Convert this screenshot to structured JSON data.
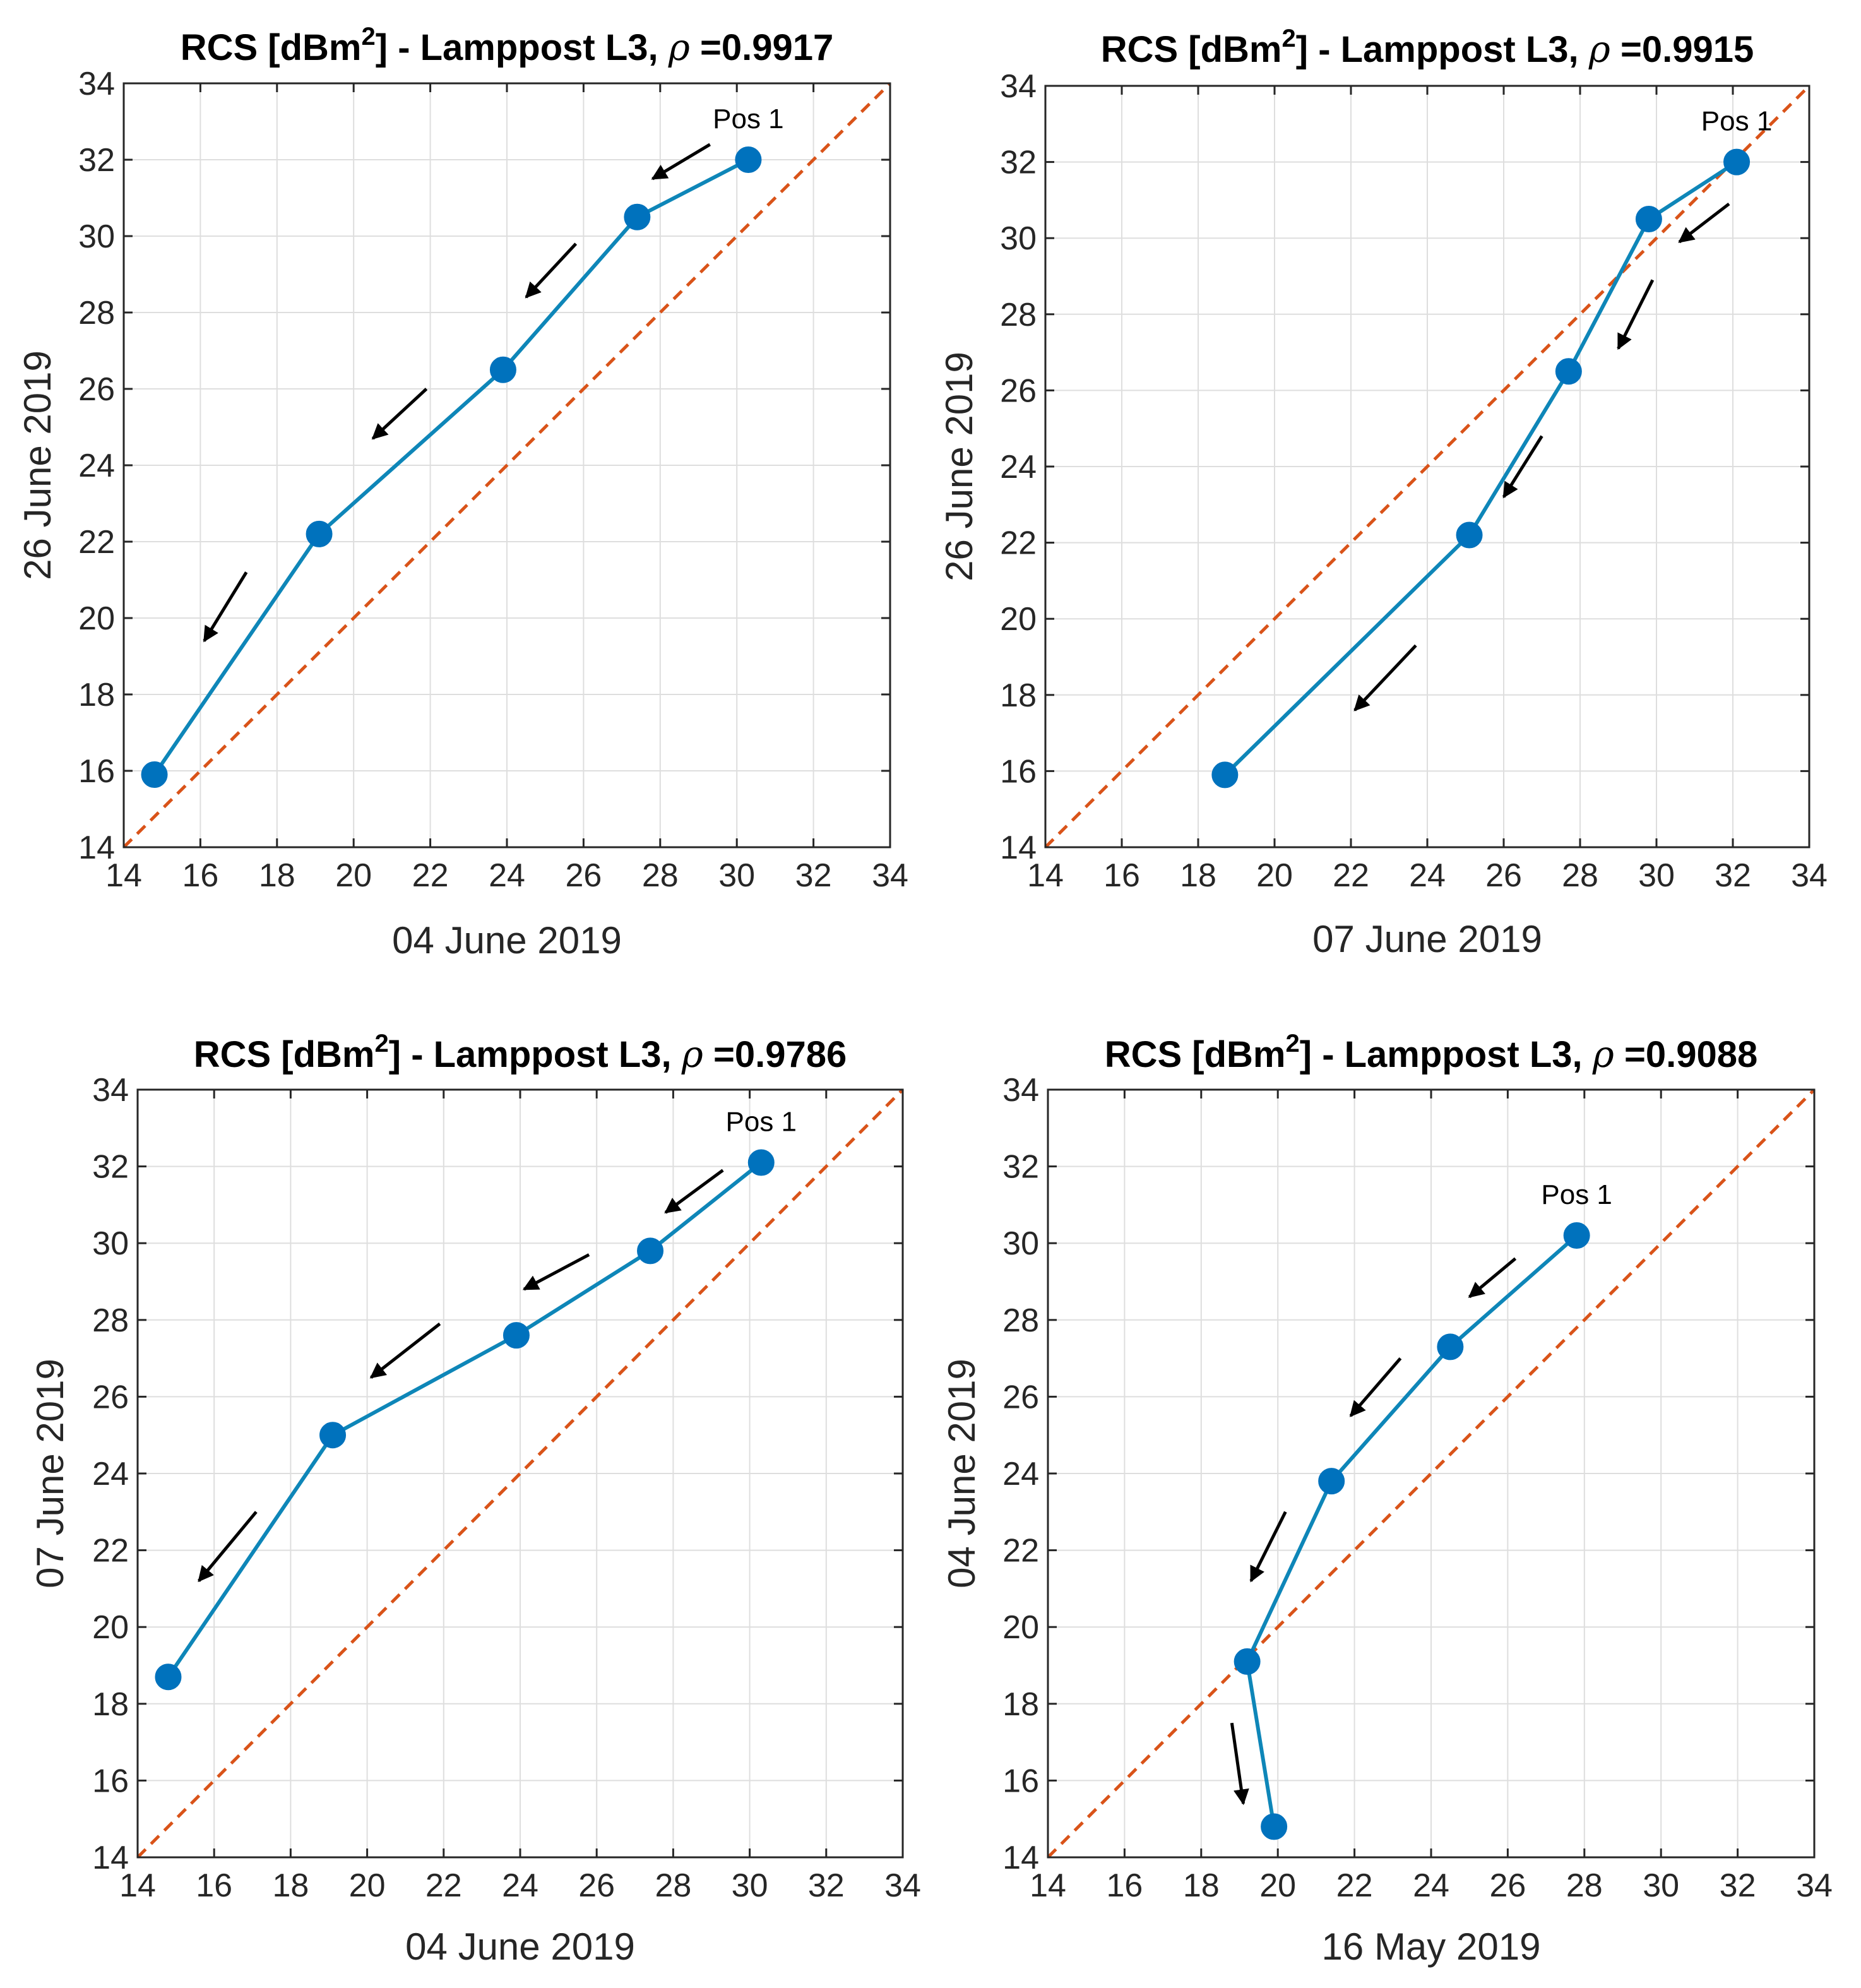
{
  "colors": {
    "series": "#0072BD",
    "series_line": "#0E86B8",
    "diagonal": "#D95319",
    "grid": "#dedede",
    "axes": "#262626",
    "arrow": "#000000"
  },
  "chart_data": [
    {
      "type": "line",
      "title_prefix": "RCS [dBm",
      "title_sup": "2",
      "title_mid": "] - Lamppost L3,  ",
      "title_rho": "ρ",
      "title_value": " =0.9917",
      "xlabel": "04 June 2019",
      "ylabel": "26 June 2019",
      "xlim": [
        14,
        34
      ],
      "ylim": [
        14,
        34
      ],
      "xticks": [
        14,
        16,
        18,
        20,
        22,
        24,
        26,
        28,
        30,
        32,
        34
      ],
      "yticks": [
        14,
        16,
        18,
        20,
        22,
        24,
        26,
        28,
        30,
        32,
        34
      ],
      "grid": true,
      "reference_line": "y = x",
      "series": [
        {
          "name": "RCS",
          "x": [
            14.8,
            19.1,
            23.9,
            27.4,
            30.3
          ],
          "y": [
            15.9,
            22.2,
            26.5,
            30.5,
            32.0
          ]
        }
      ],
      "annotation": {
        "text": "Pos 1",
        "x": 30.3,
        "y": 32.0
      },
      "arrows": [
        {
          "from": [
            29.3,
            32.4
          ],
          "to": [
            27.8,
            31.5
          ]
        },
        {
          "from": [
            25.8,
            29.8
          ],
          "to": [
            24.5,
            28.4
          ]
        },
        {
          "from": [
            21.9,
            26.0
          ],
          "to": [
            20.5,
            24.7
          ]
        },
        {
          "from": [
            17.2,
            21.2
          ],
          "to": [
            16.1,
            19.4
          ]
        }
      ]
    },
    {
      "type": "line",
      "title_prefix": "RCS [dBm",
      "title_sup": "2",
      "title_mid": "] - Lamppost L3,  ",
      "title_rho": "ρ",
      "title_value": " =0.9915",
      "xlabel": "07 June 2019",
      "ylabel": "26 June 2019",
      "xlim": [
        14,
        34
      ],
      "ylim": [
        14,
        34
      ],
      "xticks": [
        14,
        16,
        18,
        20,
        22,
        24,
        26,
        28,
        30,
        32,
        34
      ],
      "yticks": [
        14,
        16,
        18,
        20,
        22,
        24,
        26,
        28,
        30,
        32,
        34
      ],
      "grid": true,
      "reference_line": "y = x",
      "series": [
        {
          "name": "RCS",
          "x": [
            18.7,
            25.1,
            27.7,
            29.8,
            32.1
          ],
          "y": [
            15.9,
            22.2,
            26.5,
            30.5,
            32.0
          ]
        }
      ],
      "annotation": {
        "text": "Pos 1",
        "x": 32.1,
        "y": 32.0
      },
      "arrows": [
        {
          "from": [
            31.9,
            30.9
          ],
          "to": [
            30.6,
            29.9
          ]
        },
        {
          "from": [
            29.9,
            28.9
          ],
          "to": [
            29.0,
            27.1
          ]
        },
        {
          "from": [
            27.0,
            24.8
          ],
          "to": [
            26.0,
            23.2
          ]
        },
        {
          "from": [
            23.7,
            19.3
          ],
          "to": [
            22.1,
            17.6
          ]
        }
      ]
    },
    {
      "type": "line",
      "title_prefix": "RCS [dBm",
      "title_sup": "2",
      "title_mid": "] - Lamppost L3,  ",
      "title_rho": "ρ",
      "title_value": " =0.9786",
      "xlabel": "04 June 2019",
      "ylabel": "07 June 2019",
      "xlim": [
        14,
        34
      ],
      "ylim": [
        14,
        34
      ],
      "xticks": [
        14,
        16,
        18,
        20,
        22,
        24,
        26,
        28,
        30,
        32,
        34
      ],
      "yticks": [
        14,
        16,
        18,
        20,
        22,
        24,
        26,
        28,
        30,
        32,
        34
      ],
      "grid": true,
      "reference_line": "y = x",
      "series": [
        {
          "name": "RCS",
          "x": [
            14.8,
            19.1,
            23.9,
            27.4,
            30.3
          ],
          "y": [
            18.7,
            25.0,
            27.6,
            29.8,
            32.1
          ]
        }
      ],
      "annotation": {
        "text": "Pos 1",
        "x": 30.3,
        "y": 32.1
      },
      "arrows": [
        {
          "from": [
            29.3,
            31.9
          ],
          "to": [
            27.8,
            30.8
          ]
        },
        {
          "from": [
            25.8,
            29.7
          ],
          "to": [
            24.1,
            28.8
          ]
        },
        {
          "from": [
            21.9,
            27.9
          ],
          "to": [
            20.1,
            26.5
          ]
        },
        {
          "from": [
            17.1,
            23.0
          ],
          "to": [
            15.6,
            21.2
          ]
        }
      ]
    },
    {
      "type": "line",
      "title_prefix": "RCS [dBm",
      "title_sup": "2",
      "title_mid": "] - Lamppost L3,  ",
      "title_rho": "ρ",
      "title_value": " =0.9088",
      "xlabel": "16 May 2019",
      "ylabel": "04 June 2019",
      "xlim": [
        14,
        34
      ],
      "ylim": [
        14,
        34
      ],
      "xticks": [
        14,
        16,
        18,
        20,
        22,
        24,
        26,
        28,
        30,
        32,
        34
      ],
      "yticks": [
        14,
        16,
        18,
        20,
        22,
        24,
        26,
        28,
        30,
        32,
        34
      ],
      "grid": true,
      "reference_line": "y = x",
      "series": [
        {
          "name": "RCS",
          "x": [
            19.9,
            19.2,
            21.4,
            24.5,
            27.8
          ],
          "y": [
            14.8,
            19.1,
            23.8,
            27.3,
            30.2
          ]
        }
      ],
      "annotation": {
        "text": "Pos 1",
        "x": 27.8,
        "y": 30.2
      },
      "arrows": [
        {
          "from": [
            26.2,
            29.6
          ],
          "to": [
            25.0,
            28.6
          ]
        },
        {
          "from": [
            23.2,
            27.0
          ],
          "to": [
            21.9,
            25.5
          ]
        },
        {
          "from": [
            20.2,
            23.0
          ],
          "to": [
            19.3,
            21.2
          ]
        },
        {
          "from": [
            18.8,
            17.5
          ],
          "to": [
            19.1,
            15.4
          ]
        }
      ]
    }
  ]
}
